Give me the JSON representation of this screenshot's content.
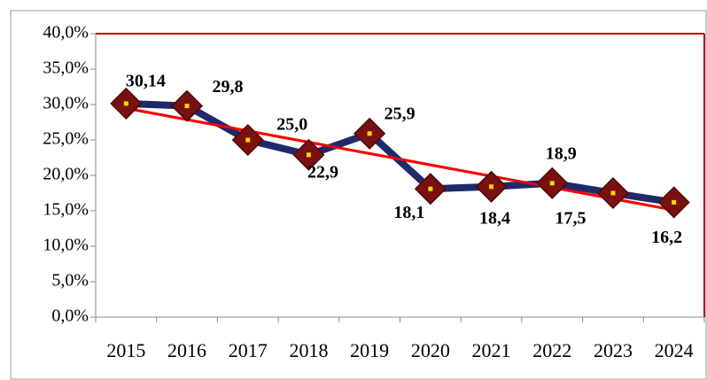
{
  "chart_data": {
    "type": "line",
    "categories": [
      "2015",
      "2016",
      "2017",
      "2018",
      "2019",
      "2020",
      "2021",
      "2022",
      "2023",
      "2024"
    ],
    "series": [
      {
        "color": "#1f2a6b",
        "marker_color": "#7a1111",
        "values": [
          30.14,
          29.8,
          25.0,
          22.9,
          25.9,
          18.1,
          18.4,
          18.9,
          17.5,
          16.2
        ],
        "value_labels": [
          "30,14",
          "29,8",
          "25,0",
          "22,9",
          "25,9",
          "18,1",
          "18,4",
          "18,9",
          "17,5",
          "16,2"
        ]
      }
    ],
    "trendline": true,
    "trendline_color": "#ff0000",
    "ylim": [
      0,
      40
    ],
    "yticks": [
      {
        "value": 0,
        "label": "0,0%"
      },
      {
        "value": 5,
        "label": "5,0%"
      },
      {
        "value": 10,
        "label": "10,0%"
      },
      {
        "value": 15,
        "label": "15,0%"
      },
      {
        "value": 20,
        "label": "20,0%"
      },
      {
        "value": 25,
        "label": "25,0%"
      },
      {
        "value": 30,
        "label": "30,0%"
      },
      {
        "value": 35,
        "label": "35,0%"
      },
      {
        "value": 40,
        "label": "40,0%"
      }
    ]
  }
}
